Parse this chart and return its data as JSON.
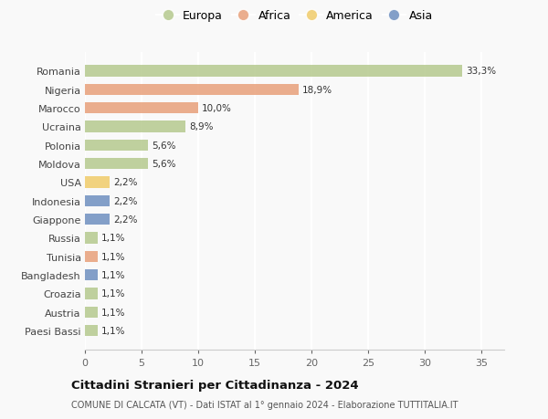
{
  "countries": [
    "Romania",
    "Nigeria",
    "Marocco",
    "Ucraina",
    "Polonia",
    "Moldova",
    "USA",
    "Indonesia",
    "Giappone",
    "Russia",
    "Tunisia",
    "Bangladesh",
    "Croazia",
    "Austria",
    "Paesi Bassi"
  ],
  "values": [
    33.3,
    18.9,
    10.0,
    8.9,
    5.6,
    5.6,
    2.2,
    2.2,
    2.2,
    1.1,
    1.1,
    1.1,
    1.1,
    1.1,
    1.1
  ],
  "labels": [
    "33,3%",
    "18,9%",
    "10,0%",
    "8,9%",
    "5,6%",
    "5,6%",
    "2,2%",
    "2,2%",
    "2,2%",
    "1,1%",
    "1,1%",
    "1,1%",
    "1,1%",
    "1,1%",
    "1,1%"
  ],
  "continents": [
    "Europa",
    "Africa",
    "Africa",
    "Europa",
    "Europa",
    "Europa",
    "America",
    "Asia",
    "Asia",
    "Europa",
    "Africa",
    "Asia",
    "Europa",
    "Europa",
    "Europa"
  ],
  "colors": {
    "Europa": "#b5c98e",
    "Africa": "#e8a07a",
    "America": "#f0cc6a",
    "Asia": "#6e8fc0"
  },
  "legend_order": [
    "Europa",
    "Africa",
    "America",
    "Asia"
  ],
  "title": "Cittadini Stranieri per Cittadinanza - 2024",
  "subtitle": "COMUNE DI CALCATA (VT) - Dati ISTAT al 1° gennaio 2024 - Elaborazione TUTTITALIA.IT",
  "xlim": [
    0,
    37
  ],
  "xticks": [
    0,
    5,
    10,
    15,
    20,
    25,
    30,
    35
  ],
  "bg_color": "#f9f9f9",
  "grid_color": "#ffffff",
  "bar_height": 0.6,
  "bar_alpha": 0.85
}
